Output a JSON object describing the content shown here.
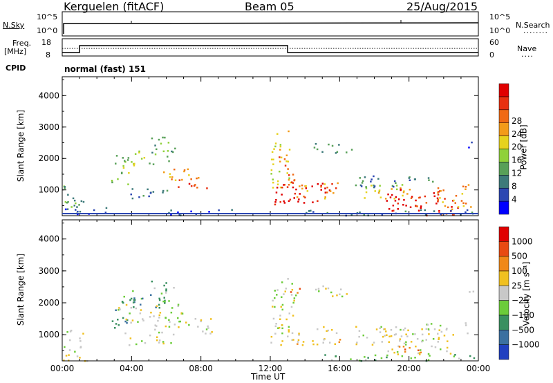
{
  "header": {
    "station": "Kerguelen (fitACF)",
    "beam": "Beam 05",
    "date": "25/Aug/2015"
  },
  "top_panels": {
    "nsky_label": "N.Sky",
    "nsky_ticks": [
      "10^5",
      "10^0"
    ],
    "nsearch_label": "N.Search",
    "nsearch_ticks": [
      "10^5",
      "10^0"
    ],
    "freq_label_1": "Freq.",
    "freq_label_2": "[MHz]",
    "freq_ticks": [
      "18",
      "8"
    ],
    "nave_label": "Nave",
    "nave_ticks": [
      "60",
      "0"
    ],
    "cpid_label": "CPID",
    "cpid_value": "normal (fast) 151"
  },
  "chart_data": [
    {
      "type": "heatmap",
      "name": "power-panel",
      "ylabel": "Slant Range [km]",
      "xlabel": "",
      "y_ticks": [
        1000,
        2000,
        3000,
        4000
      ],
      "y_tick_labels": [
        "1000",
        "2000",
        "3000",
        "4000"
      ],
      "ylim": [
        180,
        4600
      ],
      "xlim_hours": [
        0,
        24
      ],
      "colorbar": {
        "label": "Power [dB]",
        "ticks": [
          "4",
          "8",
          "12",
          "16",
          "20",
          "24",
          "28"
        ],
        "colors": [
          "#0000ff",
          "#2c47b2",
          "#3d7a7a",
          "#58a058",
          "#8fd13a",
          "#e6d21e",
          "#f39b19",
          "#f06a14",
          "#e83010",
          "#e00000"
        ]
      },
      "blobs": [
        {
          "t": 0.6,
          "r": 700,
          "dt": 0.6,
          "dr": 500,
          "c": 3
        },
        {
          "t": 1.0,
          "r": 350,
          "dt": 1.6,
          "dr": 120,
          "c": 1
        },
        {
          "t": 3.3,
          "r": 1600,
          "dt": 0.5,
          "dr": 400,
          "c": 4
        },
        {
          "t": 4.3,
          "r": 2050,
          "dt": 1.2,
          "dr": 250,
          "c": 4
        },
        {
          "t": 5.8,
          "r": 2300,
          "dt": 0.7,
          "dr": 400,
          "c": 3
        },
        {
          "t": 7.6,
          "r": 1250,
          "dt": 1.0,
          "dr": 180,
          "c": 8
        },
        {
          "t": 6.7,
          "r": 1500,
          "dt": 1.2,
          "dr": 200,
          "c": 6
        },
        {
          "t": 5.0,
          "r": 900,
          "dt": 1.2,
          "dr": 200,
          "c": 2
        },
        {
          "t": 12.6,
          "r": 2000,
          "dt": 0.6,
          "dr": 900,
          "c": 5
        },
        {
          "t": 12.9,
          "r": 1600,
          "dt": 0.5,
          "dr": 500,
          "c": 7
        },
        {
          "t": 14.0,
          "r": 900,
          "dt": 1.8,
          "dr": 350,
          "c": 9
        },
        {
          "t": 14.7,
          "r": 1000,
          "dt": 1.2,
          "dr": 250,
          "c": 6
        },
        {
          "t": 15.5,
          "r": 2350,
          "dt": 1.3,
          "dr": 150,
          "c": 3
        },
        {
          "t": 18.5,
          "r": 950,
          "dt": 1.6,
          "dr": 250,
          "c": 5
        },
        {
          "t": 20.2,
          "r": 700,
          "dt": 1.6,
          "dr": 350,
          "c": 9
        },
        {
          "t": 21.4,
          "r": 500,
          "dt": 1.4,
          "dr": 300,
          "c": 8
        },
        {
          "t": 22.6,
          "r": 800,
          "dt": 1.0,
          "dr": 400,
          "c": 6
        },
        {
          "t": 19.0,
          "r": 1300,
          "dt": 2.4,
          "dr": 200,
          "c": 2
        },
        {
          "t": 23.4,
          "r": 2450,
          "dt": 0.3,
          "dr": 100,
          "c": 1
        },
        {
          "t": 20.0,
          "r": 300,
          "dt": 6.0,
          "dr": 100,
          "c": 2
        },
        {
          "t": 8.0,
          "r": 300,
          "dt": 2.0,
          "dr": 100,
          "c": 1
        }
      ]
    },
    {
      "type": "heatmap",
      "name": "velocity-panel",
      "ylabel": "Slant Range [km]",
      "xlabel": "Time UT",
      "y_ticks": [
        1000,
        2000,
        3000,
        4000
      ],
      "y_tick_labels": [
        "1000",
        "2000",
        "3000",
        "4000"
      ],
      "ylim": [
        180,
        4600
      ],
      "x_tick_labels": [
        "00:00",
        "04:00",
        "08:00",
        "12:00",
        "16:00",
        "20:00",
        "00:00"
      ],
      "xlim_hours": [
        0,
        24
      ],
      "colorbar": {
        "label": "Velocity [m s⁻¹]",
        "ticks": [
          "1000",
          "500",
          "100",
          "25",
          "−25",
          "−100",
          "−500",
          "−1000"
        ],
        "colors": [
          "#2040c0",
          "#3b70a0",
          "#3a9060",
          "#6ccc3a",
          "#c8c8c8",
          "#f0c020",
          "#f08818",
          "#e84a12",
          "#e00000"
        ]
      },
      "blobs": [
        {
          "t": 0.7,
          "r": 700,
          "dt": 0.8,
          "dr": 500,
          "c": 4
        },
        {
          "t": 3.3,
          "r": 1550,
          "dt": 0.5,
          "dr": 400,
          "c": 2
        },
        {
          "t": 4.5,
          "r": 2100,
          "dt": 1.4,
          "dr": 300,
          "c": 2
        },
        {
          "t": 5.8,
          "r": 2350,
          "dt": 0.7,
          "dr": 350,
          "c": 3
        },
        {
          "t": 5.0,
          "r": 1700,
          "dt": 2.0,
          "dr": 300,
          "c": 4
        },
        {
          "t": 7.0,
          "r": 1300,
          "dt": 1.8,
          "dr": 250,
          "c": 4
        },
        {
          "t": 5.0,
          "r": 900,
          "dt": 1.4,
          "dr": 200,
          "c": 4
        },
        {
          "t": 12.7,
          "r": 1900,
          "dt": 0.8,
          "dr": 900,
          "c": 4
        },
        {
          "t": 14.0,
          "r": 1000,
          "dt": 2.0,
          "dr": 300,
          "c": 5
        },
        {
          "t": 15.5,
          "r": 2350,
          "dt": 1.2,
          "dr": 200,
          "c": 4
        },
        {
          "t": 13.5,
          "r": 2450,
          "dt": 0.4,
          "dr": 150,
          "c": 6
        },
        {
          "t": 18.3,
          "r": 1000,
          "dt": 1.5,
          "dr": 300,
          "c": 4
        },
        {
          "t": 20.5,
          "r": 800,
          "dt": 2.0,
          "dr": 400,
          "c": 4
        },
        {
          "t": 19.5,
          "r": 600,
          "dt": 1.2,
          "dr": 150,
          "c": 6
        },
        {
          "t": 21.8,
          "r": 1200,
          "dt": 1.6,
          "dr": 200,
          "c": 4
        },
        {
          "t": 20.0,
          "r": 300,
          "dt": 6.0,
          "dr": 100,
          "c": 3
        },
        {
          "t": 23.4,
          "r": 2450,
          "dt": 0.3,
          "dr": 100,
          "c": 4
        }
      ]
    }
  ]
}
